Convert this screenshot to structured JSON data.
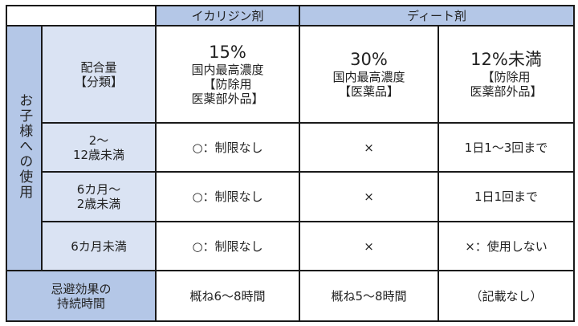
{
  "header": {
    "blank": "",
    "ikaridin": "イカリジン剤",
    "deet": "ディート剤"
  },
  "side_label": "お子様への使用",
  "concentration": {
    "label": [
      "配合量",
      "【分類】"
    ],
    "ikaridin": {
      "pct": "15%",
      "lines": [
        "国内最高濃度",
        "【防除用",
        "医薬部外品】"
      ]
    },
    "deet30": {
      "pct": "30%",
      "lines": [
        "国内最高濃度",
        "【医薬品】"
      ]
    },
    "deet12": {
      "pct": "12%未満",
      "lines": [
        "【防除用",
        "医薬部外品】"
      ]
    }
  },
  "rows": [
    {
      "label": [
        "2～",
        "12歳未満"
      ],
      "ikaridin": "○：制限なし",
      "deet30": "×",
      "deet12": "1日1～3回まで"
    },
    {
      "label": [
        "6カ月～",
        "2歳未満"
      ],
      "ikaridin": "○：制限なし",
      "deet30": "×",
      "deet12": "1日1回まで"
    },
    {
      "label": [
        "6カ月未満"
      ],
      "ikaridin": "○：制限なし",
      "deet30": "×",
      "deet12": "×：使用しない"
    }
  ],
  "duration": {
    "label": [
      "忌避効果の",
      "持続時間"
    ],
    "ikaridin": "概ね6～8時間",
    "deet30": "概ね5～8時間",
    "deet12": "（記載なし）"
  },
  "colors": {
    "header_dark": "#b4c7e7",
    "header_light": "#dae3f3",
    "border": "#1a1a1a"
  }
}
